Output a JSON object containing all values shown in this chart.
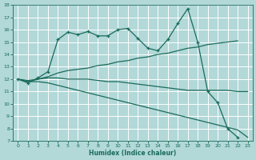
{
  "bg_color": "#b2d8d8",
  "grid_color": "#ffffff",
  "line_color": "#1a6b5a",
  "xlabel": "Humidex (Indice chaleur)",
  "ylim": [
    7,
    18
  ],
  "xlim": [
    -0.5,
    23.5
  ],
  "yticks": [
    7,
    8,
    9,
    10,
    11,
    12,
    13,
    14,
    15,
    16,
    17,
    18
  ],
  "xticks": [
    0,
    1,
    2,
    3,
    4,
    5,
    6,
    7,
    8,
    9,
    10,
    11,
    12,
    13,
    14,
    15,
    16,
    17,
    18,
    19,
    20,
    21,
    22,
    23
  ],
  "curve1_x": [
    0,
    1,
    2,
    3,
    4,
    5,
    6,
    7,
    8,
    9,
    10,
    11,
    12,
    13,
    14,
    15,
    16,
    17,
    18,
    19,
    20,
    21,
    22
  ],
  "curve1_y": [
    12.0,
    11.7,
    12.1,
    12.6,
    15.2,
    15.8,
    15.6,
    15.85,
    15.5,
    15.5,
    16.0,
    16.1,
    15.3,
    14.5,
    14.3,
    15.2,
    16.5,
    17.7,
    15.0,
    11.0,
    10.1,
    8.0,
    7.3
  ],
  "curve2_x": [
    0,
    1,
    2,
    3,
    4,
    5,
    6,
    7,
    8,
    9,
    10,
    11,
    12,
    13,
    14,
    15,
    16,
    17,
    18,
    19,
    20,
    21,
    22
  ],
  "curve2_y": [
    12.0,
    11.8,
    12.0,
    12.2,
    12.5,
    12.7,
    12.8,
    12.9,
    13.1,
    13.2,
    13.4,
    13.5,
    13.7,
    13.8,
    14.0,
    14.1,
    14.3,
    14.5,
    14.6,
    14.8,
    14.9,
    15.0,
    15.1
  ],
  "curve3_x": [
    0,
    1,
    2,
    3,
    4,
    5,
    6,
    7,
    8,
    9,
    10,
    11,
    12,
    13,
    14,
    15,
    16,
    17,
    18,
    19,
    20,
    21,
    22,
    23
  ],
  "curve3_y": [
    12.0,
    11.9,
    12.0,
    12.1,
    12.1,
    12.0,
    12.0,
    12.0,
    11.9,
    11.8,
    11.8,
    11.7,
    11.6,
    11.5,
    11.4,
    11.3,
    11.2,
    11.1,
    11.1,
    11.1,
    11.1,
    11.1,
    11.0,
    11.0
  ],
  "curve4_x": [
    0,
    1,
    2,
    3,
    4,
    5,
    6,
    7,
    8,
    9,
    10,
    11,
    12,
    13,
    14,
    15,
    16,
    17,
    18,
    19,
    20,
    21,
    22,
    23
  ],
  "curve4_y": [
    12.0,
    11.8,
    11.8,
    11.7,
    11.5,
    11.3,
    11.1,
    10.9,
    10.7,
    10.5,
    10.3,
    10.1,
    9.9,
    9.7,
    9.5,
    9.3,
    9.1,
    8.9,
    8.7,
    8.5,
    8.3,
    8.1,
    7.9,
    7.3
  ]
}
